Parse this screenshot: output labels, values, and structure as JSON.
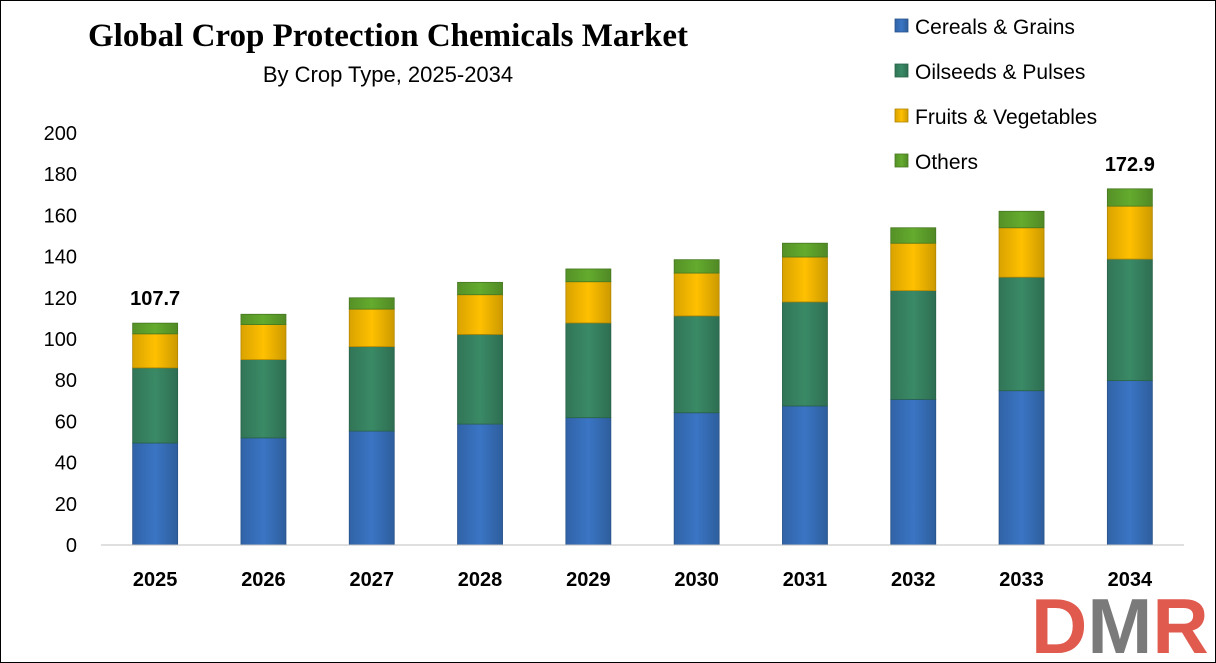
{
  "chart_data": {
    "type": "bar",
    "stacked": true,
    "title": "Global Crop Protection Chemicals Market",
    "subtitle": "By Crop Type, 2025-2034",
    "xlabel": "",
    "ylabel": "",
    "ylim": [
      0,
      200
    ],
    "yticks": [
      0,
      20,
      40,
      60,
      80,
      100,
      120,
      140,
      160,
      180,
      200
    ],
    "grid": false,
    "legend_position": "top-right",
    "categories": [
      "2025",
      "2026",
      "2027",
      "2028",
      "2029",
      "2030",
      "2031",
      "2032",
      "2033",
      "2034"
    ],
    "series": [
      {
        "name": "Cereals & Grains",
        "color": "#3a75c4",
        "values": [
          49.5,
          52.0,
          55.3,
          58.7,
          61.8,
          64.2,
          67.5,
          70.7,
          74.9,
          79.8
        ]
      },
      {
        "name": "Oilseeds & Pulses",
        "color": "#3a8a66",
        "values": [
          36.5,
          38.0,
          41.0,
          43.5,
          46.0,
          47.0,
          50.5,
          52.8,
          55.1,
          59.0
        ]
      },
      {
        "name": "Fruits & Vegetables",
        "color": "#ffc000",
        "values": [
          16.5,
          17.0,
          18.2,
          19.3,
          20.0,
          20.8,
          21.8,
          23.0,
          24.0,
          25.7
        ]
      },
      {
        "name": "Others",
        "color": "#64ab2e",
        "values": [
          5.2,
          5.0,
          5.5,
          6.0,
          6.2,
          6.5,
          6.7,
          7.5,
          8.0,
          8.4
        ]
      }
    ],
    "data_labels": [
      {
        "category": "2025",
        "text": "107.7"
      },
      {
        "category": "2034",
        "text": "172.9"
      }
    ]
  },
  "logo": {
    "text": "DMR",
    "colors": {
      "D": "#e05a4e",
      "M": "#7a7a7a",
      "R": "#e05a4e"
    }
  }
}
